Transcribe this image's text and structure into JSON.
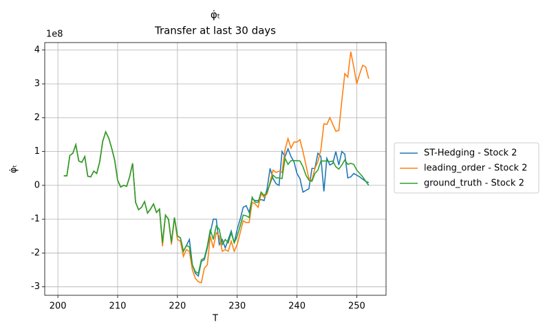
{
  "chart_data": {
    "type": "line",
    "title": "φ̇ₜ",
    "subtitle": "Transfer at last 30 days",
    "x_label": "T",
    "y_label": "φ̇ₜ",
    "y_offset_label": "1e8",
    "xlim": [
      197.8,
      254.9
    ],
    "ylim": [
      -3.25,
      4.22
    ],
    "xticks": [
      200,
      210,
      220,
      230,
      240,
      250
    ],
    "yticks": [
      -3,
      -2,
      -1,
      0,
      1,
      2,
      3,
      4
    ],
    "grid": true,
    "legend": "outside right",
    "x": [
      201,
      201.5,
      202,
      202.5,
      203,
      203.5,
      204,
      204.5,
      205,
      205.5,
      206,
      206.5,
      207,
      207.5,
      208,
      208.5,
      209,
      209.5,
      210,
      210.5,
      211,
      211.5,
      212,
      212.5,
      213,
      213.5,
      214,
      214.5,
      215,
      215.5,
      216,
      216.5,
      217,
      217.5,
      218,
      218.5,
      219,
      219.5,
      220,
      220.5,
      221,
      221.5,
      222,
      222.5,
      223,
      223.5,
      224,
      224.5,
      225,
      225.5,
      226,
      226.5,
      227,
      227.5,
      228,
      228.5,
      229,
      229.5,
      230,
      230.5,
      231,
      231.5,
      232,
      232.5,
      233,
      233.5,
      234,
      234.5,
      235,
      235.5,
      236,
      236.5,
      237,
      237.5,
      238,
      238.5,
      239,
      239.5,
      240,
      240.5,
      241,
      241.5,
      242,
      242.5,
      243,
      243.5,
      244,
      244.5,
      245,
      245.5,
      246,
      246.5,
      247,
      247.5,
      248,
      248.5,
      249,
      249.5,
      250,
      250.5,
      251,
      251.5,
      252
    ],
    "series": [
      {
        "name": "ST-Hedging - Stock 2",
        "color": "#1f77b4",
        "values": [
          0.28,
          0.28,
          0.88,
          0.95,
          1.2,
          0.72,
          0.68,
          0.85,
          0.27,
          0.25,
          0.42,
          0.35,
          0.7,
          1.3,
          1.58,
          1.4,
          1.1,
          0.75,
          0.15,
          -0.05,
          0,
          -0.03,
          0.25,
          0.65,
          -0.5,
          -0.72,
          -0.65,
          -0.48,
          -0.82,
          -0.7,
          -0.55,
          -0.8,
          -0.7,
          -1.7,
          -0.88,
          -1.0,
          -1.68,
          -0.95,
          -1.5,
          -1.55,
          -1.95,
          -1.78,
          -1.6,
          -2.35,
          -2.6,
          -2.68,
          -2.25,
          -2.2,
          -1.85,
          -1.4,
          -1.0,
          -1.0,
          -1.75,
          -1.6,
          -1.85,
          -1.6,
          -1.35,
          -1.7,
          -1.3,
          -1.0,
          -0.65,
          -0.6,
          -0.8,
          -0.4,
          -0.45,
          -0.45,
          -0.42,
          -0.45,
          -0.1,
          0.5,
          0.2,
          0.05,
          0.0,
          1.0,
          0.85,
          1.08,
          0.85,
          0.7,
          0.35,
          0.2,
          -0.2,
          -0.15,
          -0.1,
          0.5,
          0.5,
          0.95,
          0.85,
          -0.18,
          0.8,
          0.6,
          0.65,
          1.0,
          0.6,
          1.0,
          0.92,
          0.22,
          0.25,
          0.35,
          0.3,
          0.25,
          0.18,
          0.12,
          0.08
        ]
      },
      {
        "name": "leading_order - Stock 2",
        "color": "#ff7f0e",
        "values": [
          0.28,
          0.28,
          0.88,
          0.95,
          1.2,
          0.72,
          0.68,
          0.85,
          0.27,
          0.25,
          0.42,
          0.35,
          0.7,
          1.3,
          1.58,
          1.4,
          1.1,
          0.75,
          0.15,
          -0.05,
          0,
          -0.03,
          0.25,
          0.65,
          -0.5,
          -0.72,
          -0.65,
          -0.48,
          -0.82,
          -0.7,
          -0.55,
          -0.8,
          -0.7,
          -1.8,
          -0.88,
          -1.0,
          -1.75,
          -0.95,
          -1.6,
          -1.65,
          -2.1,
          -1.9,
          -1.95,
          -2.5,
          -2.75,
          -2.85,
          -2.88,
          -2.45,
          -2.35,
          -1.5,
          -1.85,
          -1.4,
          -1.5,
          -1.95,
          -1.9,
          -1.95,
          -1.65,
          -1.95,
          -1.75,
          -1.4,
          -1.05,
          -1.1,
          -1.1,
          -0.5,
          -0.55,
          -0.65,
          -0.25,
          -0.35,
          -0.25,
          0.1,
          0.45,
          0.38,
          0.42,
          0.38,
          1.05,
          1.38,
          1.1,
          1.28,
          1.28,
          1.35,
          1.0,
          0.6,
          0.2,
          0.15,
          0.5,
          0.7,
          1.05,
          1.82,
          1.8,
          2.0,
          1.8,
          1.6,
          1.62,
          2.5,
          3.3,
          3.2,
          3.95,
          3.5,
          3.0,
          3.3,
          3.55,
          3.5,
          3.15
        ]
      },
      {
        "name": "ground_truth - Stock 2",
        "color": "#2ca02c",
        "values": [
          0.28,
          0.28,
          0.88,
          0.95,
          1.2,
          0.72,
          0.68,
          0.85,
          0.27,
          0.25,
          0.42,
          0.35,
          0.7,
          1.3,
          1.58,
          1.4,
          1.1,
          0.75,
          0.15,
          -0.05,
          0,
          -0.03,
          0.25,
          0.65,
          -0.5,
          -0.72,
          -0.65,
          -0.48,
          -0.82,
          -0.7,
          -0.55,
          -0.8,
          -0.7,
          -1.7,
          -0.88,
          -1.0,
          -1.68,
          -0.95,
          -1.5,
          -1.55,
          -1.95,
          -1.78,
          -1.82,
          -2.35,
          -2.55,
          -2.6,
          -2.2,
          -2.15,
          -1.8,
          -1.3,
          -1.6,
          -1.2,
          -1.3,
          -1.75,
          -1.6,
          -1.7,
          -1.4,
          -1.7,
          -1.5,
          -1.2,
          -0.88,
          -0.9,
          -0.95,
          -0.35,
          -0.5,
          -0.5,
          -0.2,
          -0.3,
          -0.2,
          0.05,
          0.3,
          0.22,
          0.22,
          0.2,
          0.8,
          0.62,
          0.73,
          0.73,
          0.73,
          0.72,
          0.55,
          0.3,
          0.15,
          0.12,
          0.35,
          0.45,
          0.72,
          0.72,
          0.72,
          0.7,
          0.72,
          0.55,
          0.48,
          0.6,
          0.75,
          0.62,
          0.65,
          0.62,
          0.45,
          0.35,
          0.25,
          0.12,
          0
        ]
      }
    ]
  }
}
